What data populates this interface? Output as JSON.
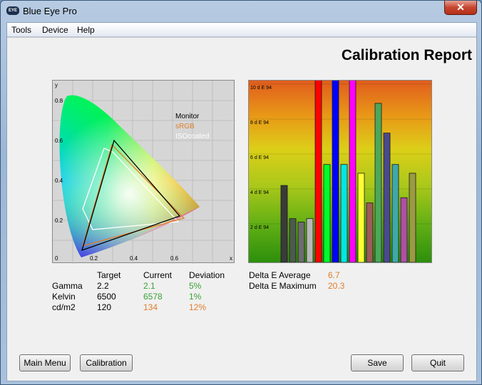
{
  "window": {
    "title": "Blue Eye Pro",
    "close_glyph": "✕",
    "app_icon_text": "EYE",
    "close_color": "#c6462f"
  },
  "menu": {
    "items": [
      "Tools",
      "Device",
      "Help"
    ]
  },
  "report": {
    "title": "Calibration Report"
  },
  "cie_chart": {
    "y_label": "y",
    "x_label": "x",
    "y_ticks": [
      "0.8",
      "0.6",
      "0.4",
      "0.2",
      "0"
    ],
    "x_ticks": [
      "0.2",
      "0.4",
      "0.6"
    ],
    "legend": [
      {
        "name": "Monitor",
        "color": "#000000"
      },
      {
        "name": "sRGB",
        "color": "#e17e2a"
      },
      {
        "name": "ISOcoated",
        "color": "#ffffff"
      }
    ]
  },
  "chart_data": {
    "type": "bar",
    "title": "",
    "ylabel": "",
    "y_ticks": [
      "10 d E 94",
      "8 d E 94",
      "6 d E 94",
      "4 d E 94",
      "2 d E 94"
    ],
    "ylim": [
      0,
      10
    ],
    "values": [
      4.2,
      2.3,
      2.1,
      2.3,
      10.4,
      5.4,
      10.4,
      5.4,
      10.4,
      4.9,
      3.2,
      8.9,
      7.2,
      5.4,
      3.5,
      4.9
    ],
    "colors": [
      "#3a3a3a",
      "#4c5a4c",
      "#6c6c6c",
      "#b8b8b8",
      "#ff0000",
      "#00ff2a",
      "#0000ff",
      "#00e6e6",
      "#ff00ff",
      "#ffff33",
      "#a05a5a",
      "#4ba85a",
      "#4a4a8c",
      "#3fa8a8",
      "#b04ea6",
      "#9a9a42"
    ]
  },
  "stats": {
    "headers": {
      "target": "Target",
      "current": "Current",
      "deviation": "Deviation"
    },
    "rows": [
      {
        "label": "Gamma",
        "target": "2.2",
        "current": "2.1",
        "deviation": "5%",
        "current_color": "#3aa335",
        "deviation_color": "#3aa335"
      },
      {
        "label": "Kelvin",
        "target": "6500",
        "current": "6578",
        "deviation": "1%",
        "current_color": "#3aa335",
        "deviation_color": "#3aa335"
      },
      {
        "label": "cd/m2",
        "target": "120",
        "current": "134",
        "deviation": "12%",
        "current_color": "#e17e2a",
        "deviation_color": "#e17e2a"
      }
    ],
    "delta": [
      {
        "label": "Delta E Average",
        "value": "6.7",
        "color": "#e17e2a"
      },
      {
        "label": "Delta E Maximum",
        "value": "20.3",
        "color": "#e17e2a"
      }
    ]
  },
  "buttons": {
    "main_menu": "Main Menu",
    "calibration": "Calibration",
    "save": "Save",
    "quit": "Quit"
  }
}
